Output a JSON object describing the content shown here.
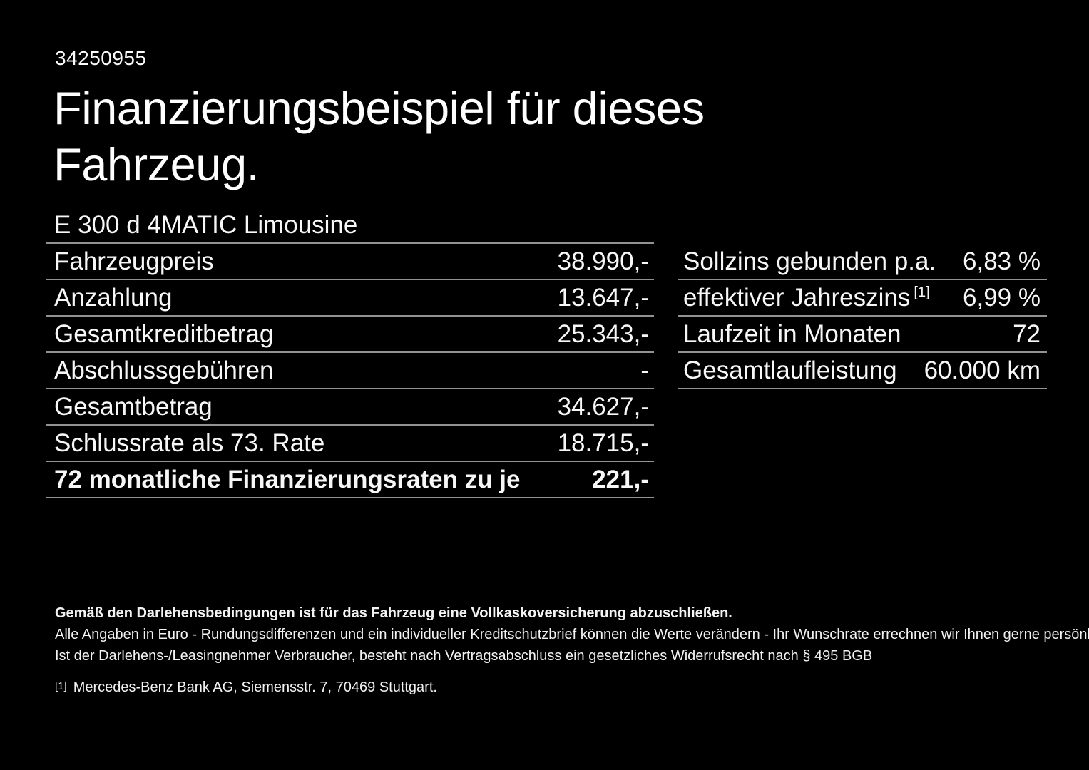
{
  "page": {
    "vehicle_id": "34250955",
    "title": "Finanzierungsbeispiel für dieses\nFahrzeug.",
    "model": "E 300 d 4MATIC Limousine"
  },
  "finance_table": {
    "rows": [
      {
        "label": "Fahrzeugpreis",
        "value": "38.990,-"
      },
      {
        "label": "Anzahlung",
        "value": "13.647,-"
      },
      {
        "label": "Gesamtkreditbetrag",
        "value": "25.343,-"
      },
      {
        "label": "Abschlussgebühren",
        "value": "-"
      },
      {
        "label": "Gesamtbetrag",
        "value": "34.627,-"
      },
      {
        "label": "Schlussrate als 73. Rate",
        "value": "18.715,-"
      },
      {
        "label": "72 monatliche Finanzierungsraten zu je",
        "value": "221,-"
      }
    ]
  },
  "conditions_table": {
    "rows": [
      {
        "label": "Sollzins gebunden p.a.",
        "value": "6,83 %"
      },
      {
        "label": "effektiver Jahreszins",
        "footnote_ref": "[1]",
        "value": "6,99 %"
      },
      {
        "label": "Laufzeit in Monaten",
        "value": "72"
      },
      {
        "label": "Gesamtlaufleistung",
        "value": "60.000 km"
      }
    ]
  },
  "notes": {
    "insurance": "Gemäß den Darlehensbedingungen ist für das Fahrzeug eine Vollkaskoversicherung abzuschließen.",
    "disclaimer": "Alle Angaben in Euro - Rundungsdifferenzen und ein individueller Kreditschutzbrief können die Werte verändern - Ihr Wunschrate errechnen wir Ihnen gerne persönlich",
    "withdrawal": "Ist der Darlehens-/Leasingnehmer Verbraucher, besteht nach Vertragsabschluss ein gesetzliches Widerrufsrecht nach § 495 BGB",
    "footnote_marker": "[1]",
    "footnote_text": "Mercedes-Benz Bank AG, Siemensstr. 7, 70469 Stuttgart."
  },
  "colors": {
    "background": "#000000",
    "text": "#ffffff",
    "divider": "#929292"
  }
}
